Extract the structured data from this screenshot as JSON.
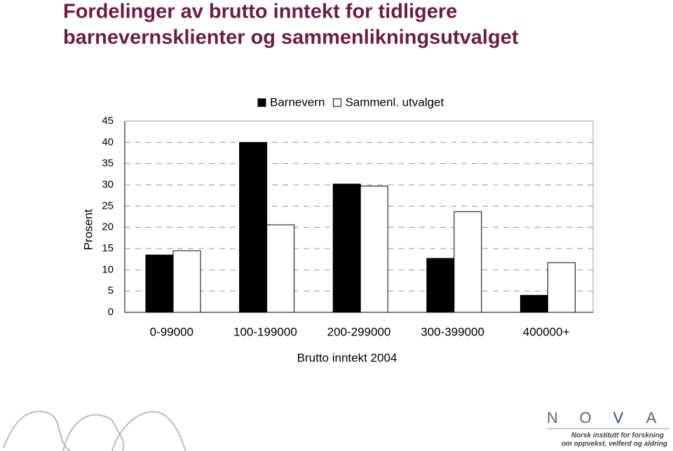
{
  "chart_data": {
    "type": "bar",
    "title": [
      "Fordelinger av brutto inntekt for tidligere",
      "barnevernsklienter og sammenlikningsutvalget"
    ],
    "xlabel": "Brutto inntekt 2004",
    "ylabel": "Prosent",
    "categories": [
      "0-99000",
      "100-199000",
      "200-299000",
      "300-399000",
      "400000+"
    ],
    "series": [
      {
        "name": "Barnevern",
        "color": "#000000",
        "values": [
          13.5,
          40,
          30.2,
          12.7,
          4
        ]
      },
      {
        "name": "Sammenl. utvalget",
        "color": "#ffffff",
        "values": [
          14.5,
          20.6,
          29.7,
          23.7,
          11.7
        ]
      }
    ],
    "ylim": [
      0,
      45
    ],
    "yticks": [
      0,
      5,
      10,
      15,
      20,
      25,
      30,
      35,
      40,
      45
    ],
    "grid": true,
    "legend": "top"
  },
  "footer": {
    "logo": [
      "N",
      "O",
      "V",
      "A"
    ],
    "tagline": [
      "Norsk institutt for forskning",
      "om oppvekst, velferd og aldring"
    ]
  }
}
